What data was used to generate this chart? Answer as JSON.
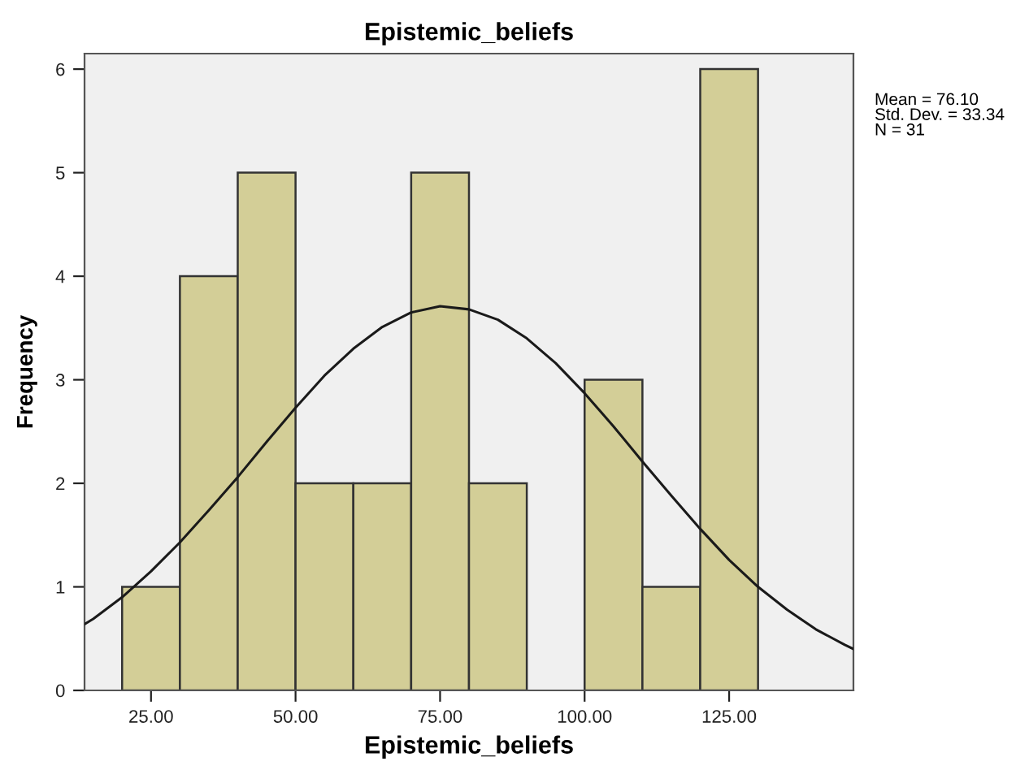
{
  "chart_data": {
    "type": "histogram",
    "title": "Epistemic_beliefs",
    "xlabel": "Epistemic_beliefs",
    "ylabel": "Frequency",
    "bins": [
      20,
      30,
      40,
      50,
      60,
      70,
      80,
      90,
      100,
      110,
      120,
      130
    ],
    "values": [
      1,
      4,
      5,
      2,
      2,
      5,
      2,
      0,
      3,
      1,
      6
    ],
    "color": "#d3ce97",
    "series": [
      {
        "type": "line",
        "color": "#1a1a1a",
        "x": [
          13.5,
          15,
          20,
          25,
          30,
          35,
          40,
          45,
          50,
          55,
          60,
          65,
          70,
          75,
          80,
          85,
          90,
          95,
          100,
          105,
          110,
          115,
          120,
          125,
          130,
          135,
          140,
          145,
          146.5
        ],
        "values": [
          0.64,
          0.69,
          0.9,
          1.15,
          1.43,
          1.74,
          2.06,
          2.4,
          2.73,
          3.04,
          3.3,
          3.51,
          3.65,
          3.71,
          3.68,
          3.58,
          3.4,
          3.16,
          2.87,
          2.55,
          2.21,
          1.88,
          1.56,
          1.26,
          1.0,
          0.78,
          0.59,
          0.44,
          0.4
        ]
      }
    ],
    "xlim": [
      13.5,
      146.5
    ],
    "ylim": [
      0,
      6.15
    ],
    "xticks": [
      {
        "value": 25,
        "label": "25.00"
      },
      {
        "value": 50,
        "label": "50.00"
      },
      {
        "value": 75,
        "label": "75.00"
      },
      {
        "value": 100,
        "label": "100.00"
      },
      {
        "value": 125,
        "label": "125.00"
      }
    ],
    "yticks": [
      0,
      1,
      2,
      3,
      4,
      5,
      6
    ],
    "annotations": [
      "Mean = 76.10\nStd. Dev. = 33.34\nN = 31"
    ]
  }
}
